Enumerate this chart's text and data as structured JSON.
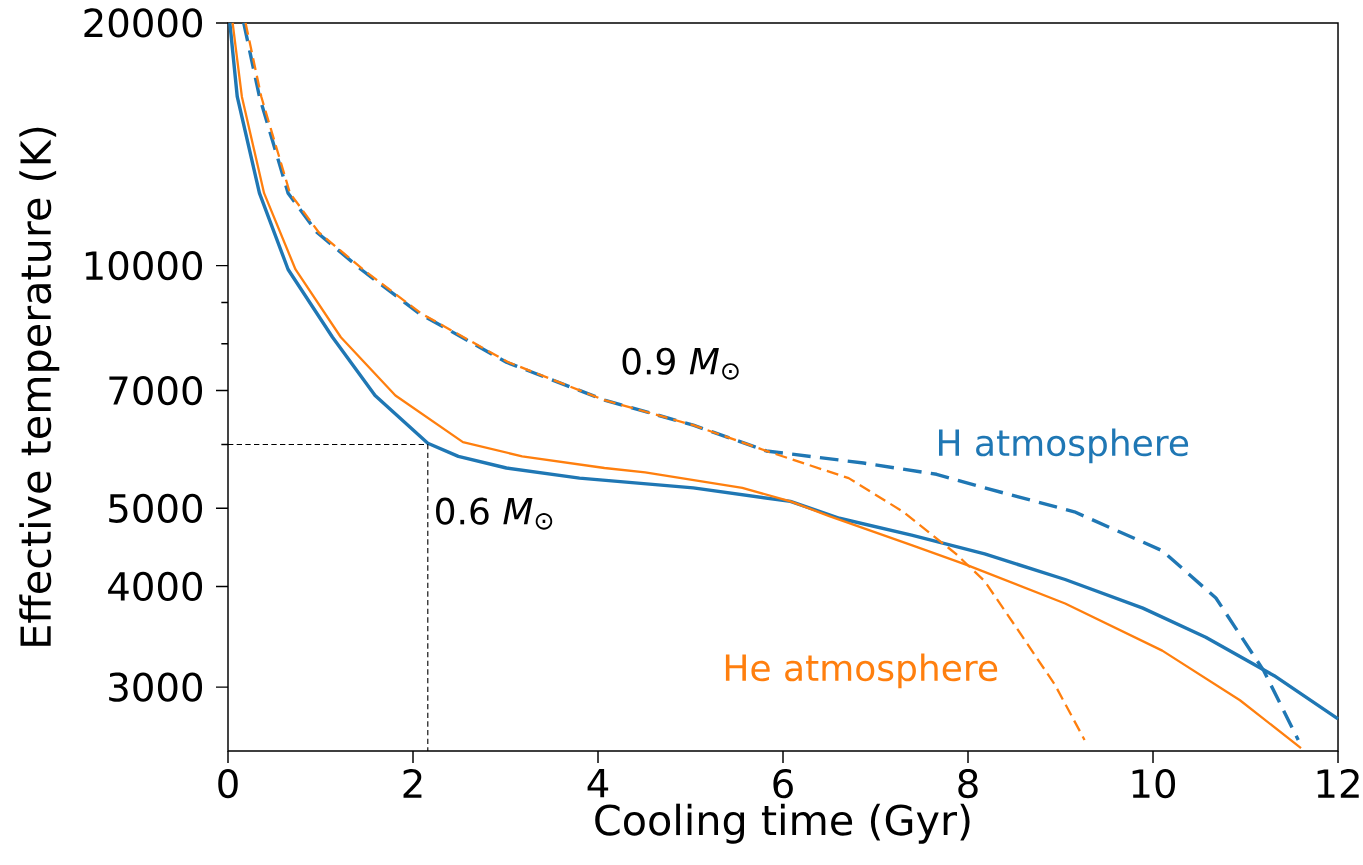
{
  "chart_data": {
    "type": "line",
    "xlabel": "Cooling time (Gyr)",
    "ylabel": "Effective temperature (K)",
    "log": "y",
    "xlim": [
      0,
      12
    ],
    "ylim": [
      2500,
      20000
    ],
    "xticks": [
      0,
      2,
      4,
      6,
      8,
      10,
      12
    ],
    "yticks": [
      3000,
      4000,
      5000,
      {
        "value": 6000,
        "label": null
      },
      7000,
      {
        "value": 8000,
        "label": null
      },
      {
        "value": 9000,
        "label": null
      },
      10000,
      20000
    ],
    "annotations": [
      "0.9 *M*$_{⊙}$",
      "0.6 *M*$_{⊙}$"
    ],
    "series": [
      {
        "name": "H atmosphere",
        "color": "#1f77b4",
        "line_style": "solid",
        "x": [
          0.02,
          0.1,
          0.34,
          0.65,
          1.13,
          1.59,
          2.16,
          2.49,
          3.01,
          3.8,
          5.03,
          6.08,
          6.61,
          7.39,
          8.18,
          9.05,
          9.89,
          10.57,
          11.31,
          12.0
        ],
        "values": [
          20000,
          16200,
          12300,
          9890,
          8150,
          6900,
          6020,
          5800,
          5610,
          5450,
          5300,
          5100,
          4860,
          4630,
          4390,
          4080,
          3760,
          3460,
          3100,
          2740
        ]
      },
      {
        "name": "He atmosphere",
        "color": "#ff7f0e",
        "line_style": "solid",
        "x": [
          0.05,
          0.15,
          0.39,
          0.73,
          1.22,
          1.81,
          2.54,
          3.18,
          4.07,
          4.51,
          5.56,
          6.08,
          6.5,
          7.39,
          7.97,
          9.05,
          10.1,
          10.94,
          11.6
        ],
        "values": [
          20000,
          16200,
          12300,
          9890,
          8150,
          6900,
          6040,
          5800,
          5610,
          5540,
          5300,
          5100,
          4890,
          4500,
          4260,
          3810,
          3330,
          2890,
          2520
        ]
      },
      {
        "color": "#1f77b4",
        "line_style": "dashed",
        "x": [
          0.17,
          0.34,
          0.65,
          0.96,
          1.44,
          2.07,
          3.01,
          4.07,
          5.03,
          5.82,
          6.87,
          7.66,
          8.18,
          9.15,
          10.1,
          10.68,
          11.2,
          11.57
        ],
        "values": [
          20000,
          16200,
          12300,
          11000,
          9890,
          8720,
          7590,
          6810,
          6340,
          5890,
          5690,
          5510,
          5300,
          4950,
          4430,
          3870,
          3140,
          2580
        ]
      },
      {
        "color": "#ff7f0e",
        "line_style": "dashed",
        "x": [
          0.19,
          0.36,
          0.67,
          0.98,
          1.46,
          2.09,
          3.03,
          4.07,
          5.03,
          5.82,
          6.71,
          7.3,
          7.87,
          8.18,
          8.52,
          8.94,
          9.26
        ],
        "values": [
          20000,
          16200,
          12300,
          11000,
          9890,
          8720,
          7590,
          6810,
          6340,
          5890,
          5450,
          4950,
          4390,
          4060,
          3560,
          3020,
          2580
        ]
      },
      {
        "color": "#000000",
        "line_style": "dashed",
        "x": [
          0,
          2.16,
          2.16
        ],
        "values": [
          6000,
          6000,
          2500
        ]
      }
    ]
  }
}
